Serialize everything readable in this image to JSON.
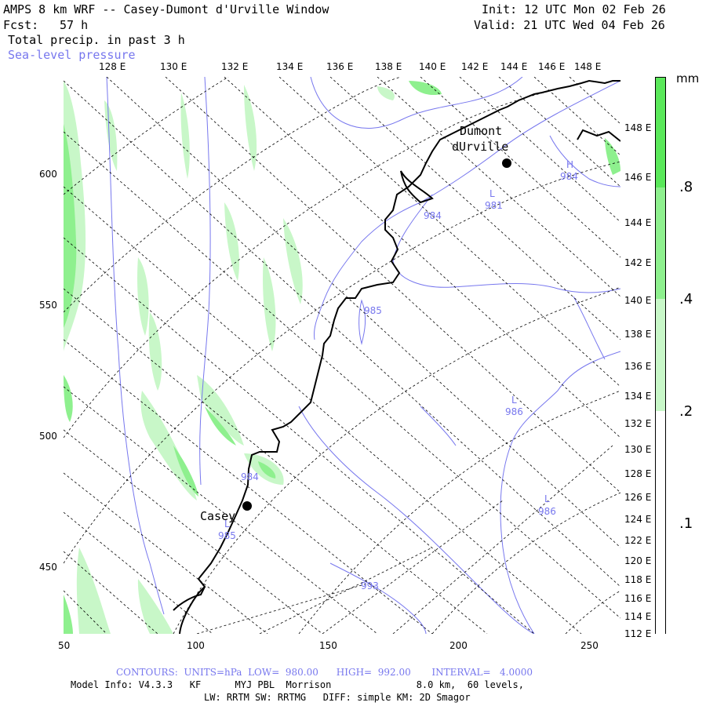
{
  "header": {
    "title": "AMPS 8 km WRF -- Casey-Dumont d'Urville Window",
    "forecast_label": "Fcst:",
    "forecast_hours": "57 h",
    "field_primary": "Total precip. in past 3 h",
    "field_secondary": "Sea-level pressure",
    "init": "Init: 12 UTC Mon 02 Feb 26",
    "valid": "Valid: 21 UTC Wed 04 Feb 26"
  },
  "map": {
    "top_lon_labels": [
      "128 E",
      "130 E",
      "132 E",
      "134 E",
      "136 E",
      "138 E",
      "140 E",
      "142 E",
      "144 E",
      "146 E",
      "148 E"
    ],
    "right_lon_labels": [
      "148 E",
      "146 E",
      "144 E",
      "142 E",
      "140 E",
      "138 E",
      "136 E",
      "134 E",
      "132 E",
      "130 E",
      "128 E",
      "126 E",
      "124 E",
      "122 E",
      "120 E",
      "118 E",
      "116 E",
      "114 E",
      "112 E"
    ],
    "left_y_labels": [
      "600",
      "550",
      "500",
      "450"
    ],
    "bottom_x_labels": [
      "50",
      "100",
      "150",
      "200",
      "250"
    ],
    "stations": [
      {
        "name_line1": "Dumont",
        "name_line2": "dUrville"
      },
      {
        "name_line1": "Casey",
        "name_line2": ""
      }
    ],
    "pressure_labels": [
      {
        "letter": "H",
        "value": "984"
      },
      {
        "letter": "L",
        "value": "981"
      },
      {
        "letter": "",
        "value": "984"
      },
      {
        "letter": "",
        "value": "985"
      },
      {
        "letter": "L",
        "value": "986"
      },
      {
        "letter": "L",
        "value": "986"
      },
      {
        "letter": "",
        "value": "984"
      },
      {
        "letter": "L",
        "value": "985"
      },
      {
        "letter": "",
        "value": "993"
      }
    ]
  },
  "colorbar": {
    "unit": "mm",
    "labels": [
      ".8",
      ".4",
      ".2",
      ".1"
    ],
    "colors": [
      "#5ae85a",
      "#8ef08e",
      "#c8f7c8",
      "#ffffff"
    ]
  },
  "footer": {
    "contours": "CONTOURS:  UNITS=hPa  LOW=  980.00      HIGH=  992.00       INTERVAL=   4.0000",
    "model_info": "Model Info: V4.3.3   KF      MYJ PBL  Morrison               8.0 km,  60 levels,",
    "physics": "LW: RRTM SW: RRTMG   DIFF: simple KM: 2D Smagor"
  },
  "colors": {
    "contour_blue": "#7777ee",
    "precip_light": "#c8f7c8",
    "precip_mid": "#8ef08e",
    "precip_high": "#5ae85a"
  }
}
